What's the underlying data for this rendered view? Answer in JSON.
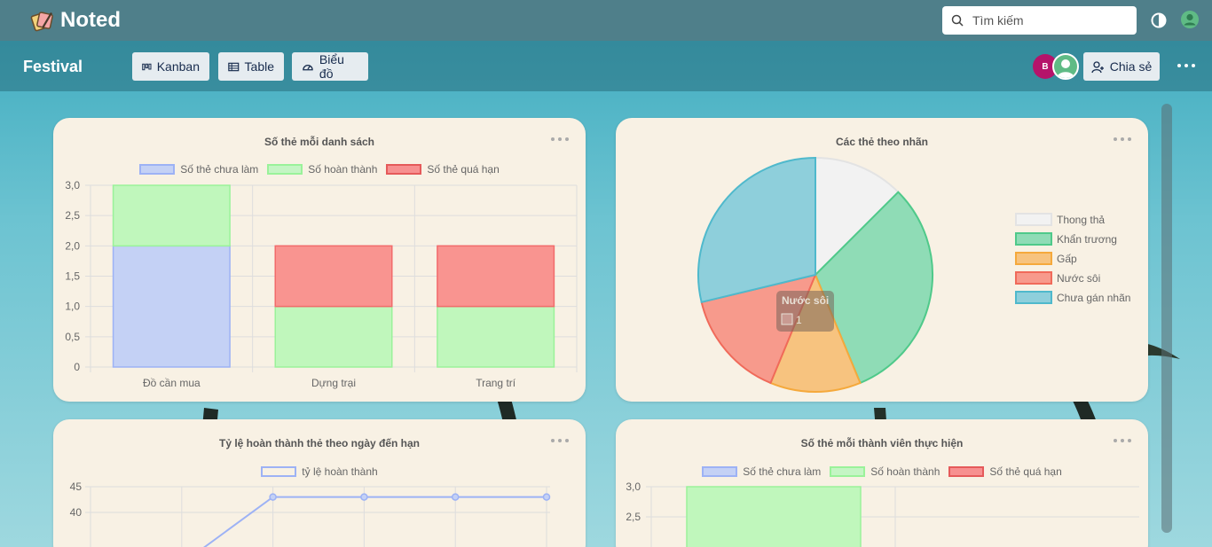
{
  "app": {
    "name": "Noted"
  },
  "search": {
    "placeholder": "Tìm kiếm"
  },
  "board": {
    "title": "Festival"
  },
  "views": [
    {
      "label": "Kanban",
      "icon": "kanban-icon"
    },
    {
      "label": "Table",
      "icon": "table-icon"
    },
    {
      "label": "Biểu đồ",
      "icon": "gauge-icon"
    }
  ],
  "members": {
    "avatar_initial": "B"
  },
  "share": {
    "label": "Chia sẻ"
  },
  "colors": {
    "todo": "#9db2f5",
    "done": "#9af29a",
    "overdue": "#f26b6b",
    "card": "#f8f1e4"
  },
  "chart_data": [
    {
      "type": "bar",
      "stacked": true,
      "title": "Số thẻ mỗi danh sách",
      "categories": [
        "Đồ cần mua",
        "Dựng trại",
        "Trang trí"
      ],
      "series": [
        {
          "name": "Số thẻ chưa làm",
          "values": [
            2,
            0,
            0
          ]
        },
        {
          "name": "Số hoàn thành",
          "values": [
            1,
            1,
            1
          ]
        },
        {
          "name": "Số thẻ quá hạn",
          "values": [
            0,
            1,
            1
          ]
        }
      ],
      "ylim": [
        0,
        3
      ],
      "yticks": [
        "0",
        "0,5",
        "1,0",
        "1,5",
        "2,0",
        "2,5",
        "3,0"
      ],
      "legend": "top",
      "grid": true
    },
    {
      "type": "pie",
      "title": "Các thẻ theo nhãn",
      "labels": [
        "Thong thả",
        "Khẩn trương",
        "Gấp",
        "Nước sôi",
        "Chưa gán nhãn"
      ],
      "values": [
        1,
        2.5,
        1,
        1.2,
        2.3
      ],
      "colors": [
        "#f2f2f2",
        "#8fdcb6",
        "#f7c37f",
        "#f79a8c",
        "#8ecfdb"
      ],
      "borders": [
        "#e3e3e3",
        "#4fc98a",
        "#f5a93c",
        "#f06a5a",
        "#4fb9cc"
      ],
      "tooltip": {
        "title": "Nước sôi",
        "value": "1"
      },
      "legend": "right"
    },
    {
      "type": "line",
      "title": "Tỷ lệ hoàn thành thẻ theo ngày đến hạn",
      "series": [
        {
          "name": "tỷ lệ hoàn thành",
          "values": [
            null,
            30,
            43,
            43,
            43,
            43
          ]
        }
      ],
      "yticks_visible": [
        "45",
        "40"
      ],
      "legend": "top"
    },
    {
      "type": "bar",
      "stacked": true,
      "title": "Số thẻ mỗi thành viên thực hiện",
      "series": [
        {
          "name": "Số thẻ chưa làm"
        },
        {
          "name": "Số hoàn thành"
        },
        {
          "name": "Số thẻ quá hạn"
        }
      ],
      "yticks_visible": [
        "3,0",
        "2,5"
      ],
      "legend": "top"
    }
  ]
}
